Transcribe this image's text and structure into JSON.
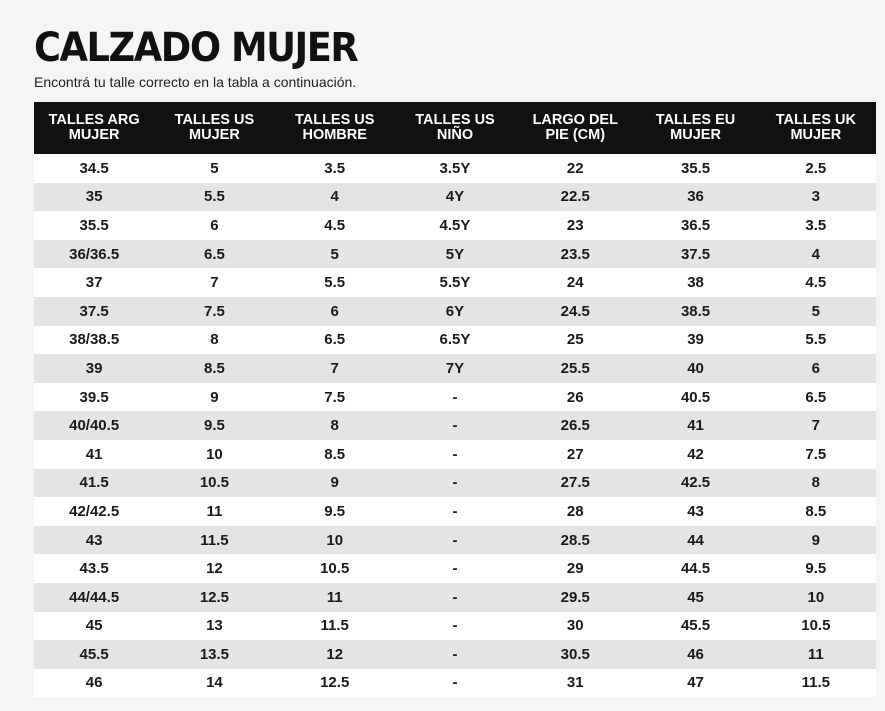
{
  "title": "CALZADO MUJER",
  "subtitle": "Encontrá tu talle correcto en la tabla a continuación.",
  "table": {
    "headers": [
      [
        "TALLES ARG",
        "MUJER"
      ],
      [
        "TALLES US",
        "MUJER"
      ],
      [
        "TALLES US",
        "HOMBRE"
      ],
      [
        "TALLES US",
        "NIÑO"
      ],
      [
        "LARGO DEL",
        "PIE (CM)"
      ],
      [
        "TALLES EU",
        "MUJER"
      ],
      [
        "TALLES UK",
        "MUJER"
      ]
    ],
    "rows": [
      [
        "34.5",
        "5",
        "3.5",
        "3.5Y",
        "22",
        "35.5",
        "2.5"
      ],
      [
        "35",
        "5.5",
        "4",
        "4Y",
        "22.5",
        "36",
        "3"
      ],
      [
        "35.5",
        "6",
        "4.5",
        "4.5Y",
        "23",
        "36.5",
        "3.5"
      ],
      [
        "36/36.5",
        "6.5",
        "5",
        "5Y",
        "23.5",
        "37.5",
        "4"
      ],
      [
        "37",
        "7",
        "5.5",
        "5.5Y",
        "24",
        "38",
        "4.5"
      ],
      [
        "37.5",
        "7.5",
        "6",
        "6Y",
        "24.5",
        "38.5",
        "5"
      ],
      [
        "38/38.5",
        "8",
        "6.5",
        "6.5Y",
        "25",
        "39",
        "5.5"
      ],
      [
        "39",
        "8.5",
        "7",
        "7Y",
        "25.5",
        "40",
        "6"
      ],
      [
        "39.5",
        "9",
        "7.5",
        "-",
        "26",
        "40.5",
        "6.5"
      ],
      [
        "40/40.5",
        "9.5",
        "8",
        "-",
        "26.5",
        "41",
        "7"
      ],
      [
        "41",
        "10",
        "8.5",
        "-",
        "27",
        "42",
        "7.5"
      ],
      [
        "41.5",
        "10.5",
        "9",
        "-",
        "27.5",
        "42.5",
        "8"
      ],
      [
        "42/42.5",
        "11",
        "9.5",
        "-",
        "28",
        "43",
        "8.5"
      ],
      [
        "43",
        "11.5",
        "10",
        "-",
        "28.5",
        "44",
        "9"
      ],
      [
        "43.5",
        "12",
        "10.5",
        "-",
        "29",
        "44.5",
        "9.5"
      ],
      [
        "44/44.5",
        "12.5",
        "11",
        "-",
        "29.5",
        "45",
        "10"
      ],
      [
        "45",
        "13",
        "11.5",
        "-",
        "30",
        "45.5",
        "10.5"
      ],
      [
        "45.5",
        "13.5",
        "12",
        "-",
        "30.5",
        "46",
        "11"
      ],
      [
        "46",
        "14",
        "12.5",
        "-",
        "31",
        "47",
        "11.5"
      ]
    ]
  }
}
